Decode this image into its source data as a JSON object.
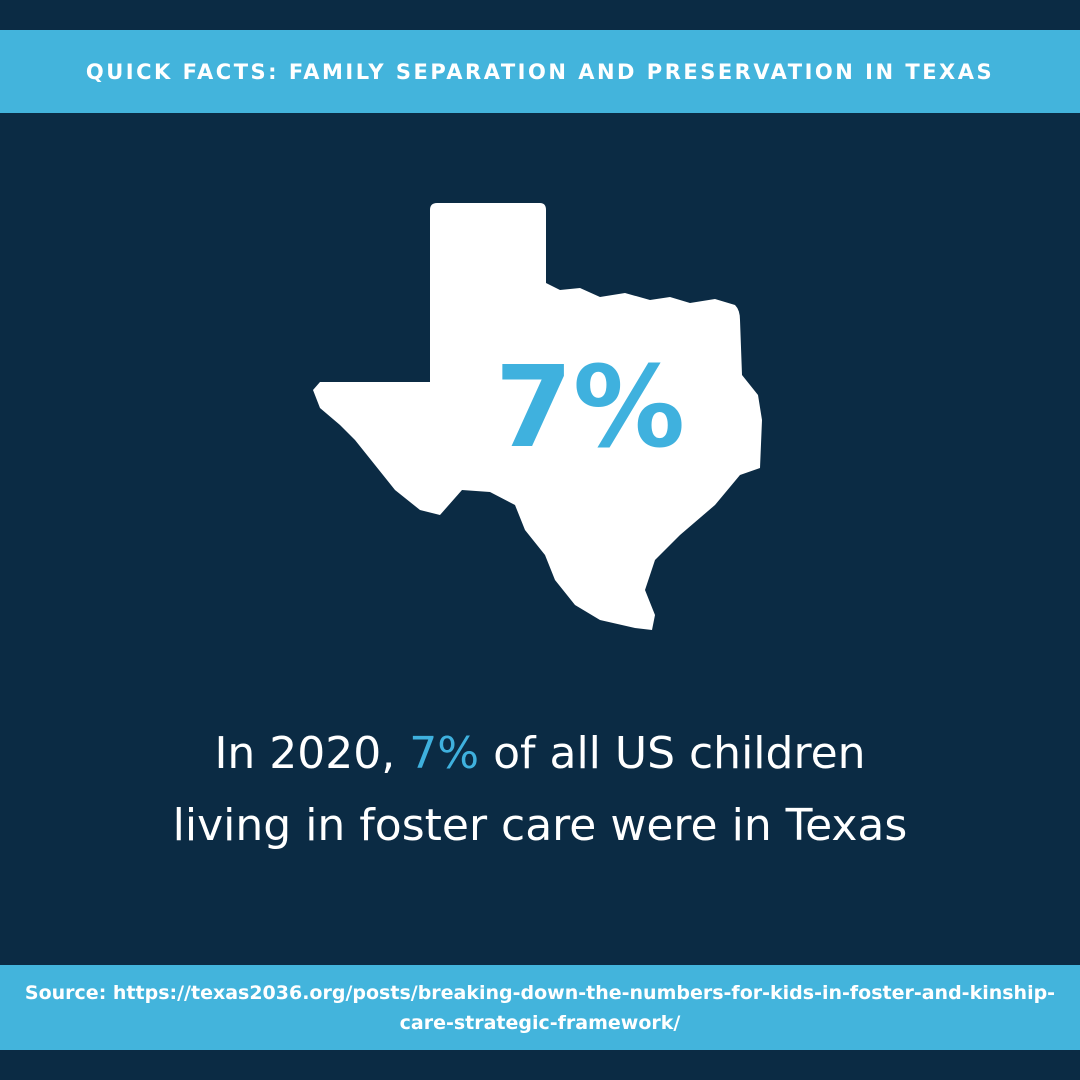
{
  "header": {
    "title": "QUICK FACTS: FAMILY SEPARATION AND PRESERVATION IN TEXAS"
  },
  "stat": {
    "value": "7%"
  },
  "statement": {
    "line1_start": "In 2020,",
    "highlight": "7%",
    "line1_end": "of all US children",
    "line2": "living in foster care were in Texas"
  },
  "source": {
    "text": "Source: https://texas2036.org/posts/breaking-down-the-numbers-for-kids-in-foster-and-kinship-care-strategic-framework/"
  }
}
